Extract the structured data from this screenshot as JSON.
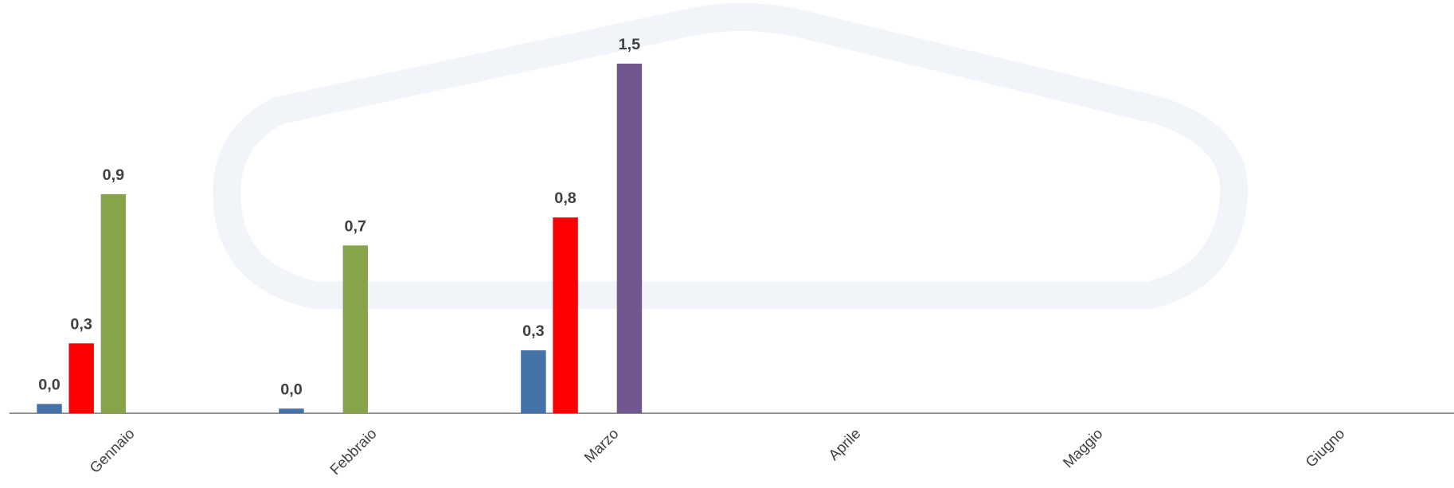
{
  "chart_data": {
    "type": "bar",
    "categories": [
      "Gennaio",
      "Febbraio",
      "Marzo",
      "Aprile",
      "Maggio",
      "Giugno"
    ],
    "series": [
      {
        "color": "#4472a8",
        "values": [
          0.04,
          0.02,
          0.27,
          null,
          null,
          null
        ],
        "value_labels": [
          "0,0",
          "0,0",
          "0,3",
          null,
          null,
          null
        ]
      },
      {
        "color": "#ff0000",
        "values": [
          0.3,
          null,
          0.84,
          null,
          null,
          null
        ],
        "value_labels": [
          "0,3",
          null,
          "0,8",
          null,
          null,
          null
        ]
      },
      {
        "color": "#86a44a",
        "values": [
          0.94,
          0.72,
          null,
          null,
          null,
          null
        ],
        "value_labels": [
          "0,9",
          "0,7",
          null,
          null,
          null,
          null
        ]
      },
      {
        "color": "#70578f",
        "values": [
          null,
          null,
          1.5,
          null,
          null,
          null
        ],
        "value_labels": [
          null,
          null,
          "1,5",
          null,
          null,
          null
        ]
      }
    ],
    "ylim": [
      0,
      1.75
    ],
    "grid": false
  }
}
